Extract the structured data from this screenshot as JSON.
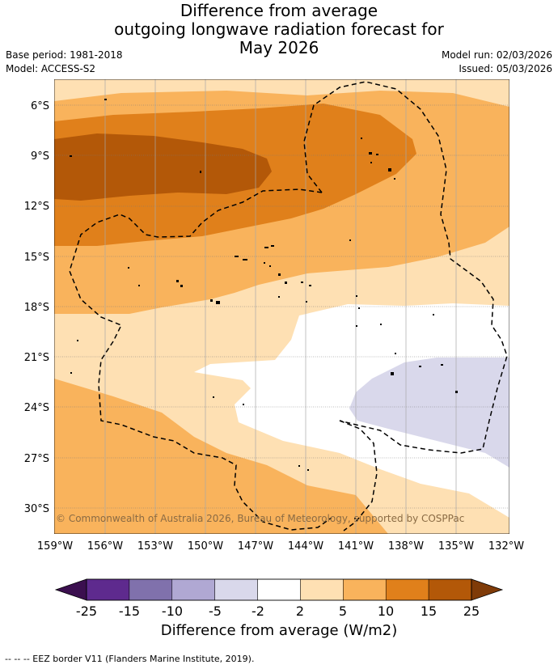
{
  "title": {
    "line1": "Difference from average",
    "line2": "outgoing longwave radiation forecast for",
    "line3": "May 2026"
  },
  "meta": {
    "base_period": "Base period: 1981-2018",
    "model": "Model: ACCESS-S2",
    "model_run": "Model run: 02/03/2026",
    "issued": "Issued: 05/03/2026"
  },
  "map": {
    "lat_labels": [
      "6°S",
      "9°S",
      "12°S",
      "15°S",
      "18°S",
      "21°S",
      "24°S",
      "27°S",
      "30°S"
    ],
    "lon_labels": [
      "159°W",
      "156°W",
      "153°W",
      "150°W",
      "147°W",
      "144°W",
      "141°W",
      "138°W",
      "135°W",
      "132°W"
    ],
    "copyright": "© Commonwealth of Australia 2026, Bureau of Meteorology, supported by COSPPac"
  },
  "colorbar": {
    "ticks": [
      "-25",
      "-15",
      "-10",
      "-5",
      "-2",
      "2",
      "5",
      "10",
      "15",
      "25"
    ],
    "colors": [
      "#3b0f4f",
      "#5e2a8e",
      "#8071ac",
      "#b0a8d3",
      "#d9d8eb",
      "#ffffff",
      "#fee0b3",
      "#f9b35c",
      "#e0801b",
      "#b35808",
      "#7f3b08"
    ],
    "title": "Difference from average (W/m2)"
  },
  "footer": "--  --  -- EEZ border V11 (Flanders Marine Institute, 2019)."
}
